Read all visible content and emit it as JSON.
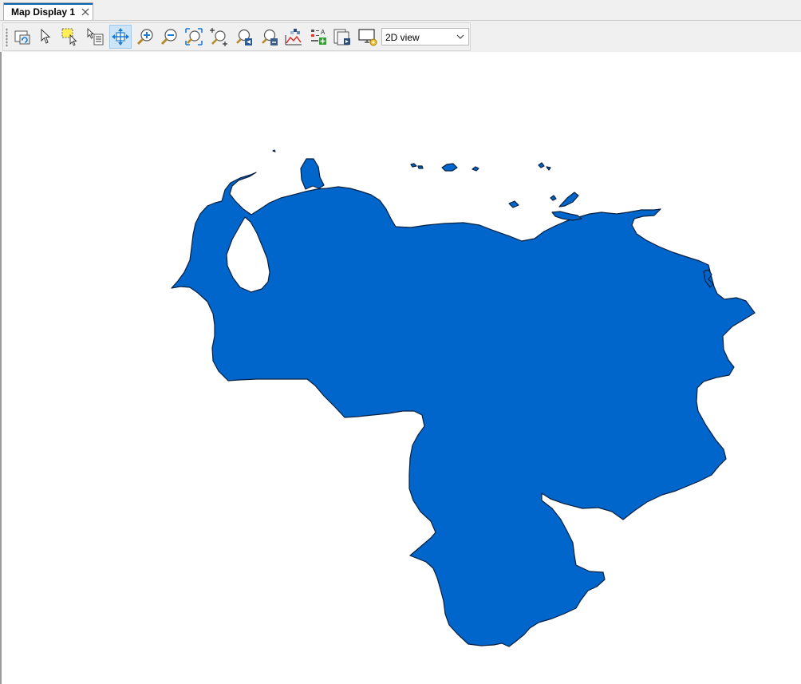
{
  "tab": {
    "title": "Map Display 1"
  },
  "toolbar": {
    "tools": [
      "refresh-display-icon",
      "select-arrow-icon",
      "select-rectangle-icon",
      "feature-info-icon",
      "pan-icon",
      "zoom-in-icon",
      "zoom-out-icon",
      "zoom-extent-icon",
      "zoom-selected-icon",
      "zoom-back-icon",
      "zoom-layer-icon",
      "profile-surface-icon",
      "add-map-element-icon",
      "print-preview-icon",
      "display-settings-icon"
    ],
    "active_tool": "pan-icon",
    "view_mode": {
      "value": "2D view"
    }
  },
  "map": {
    "region_fill": "#0066cc",
    "region_stroke": "#062040",
    "background": "#ffffff"
  },
  "colors": {
    "accent": "#0a64ad",
    "active_button": "#cce4f7"
  }
}
